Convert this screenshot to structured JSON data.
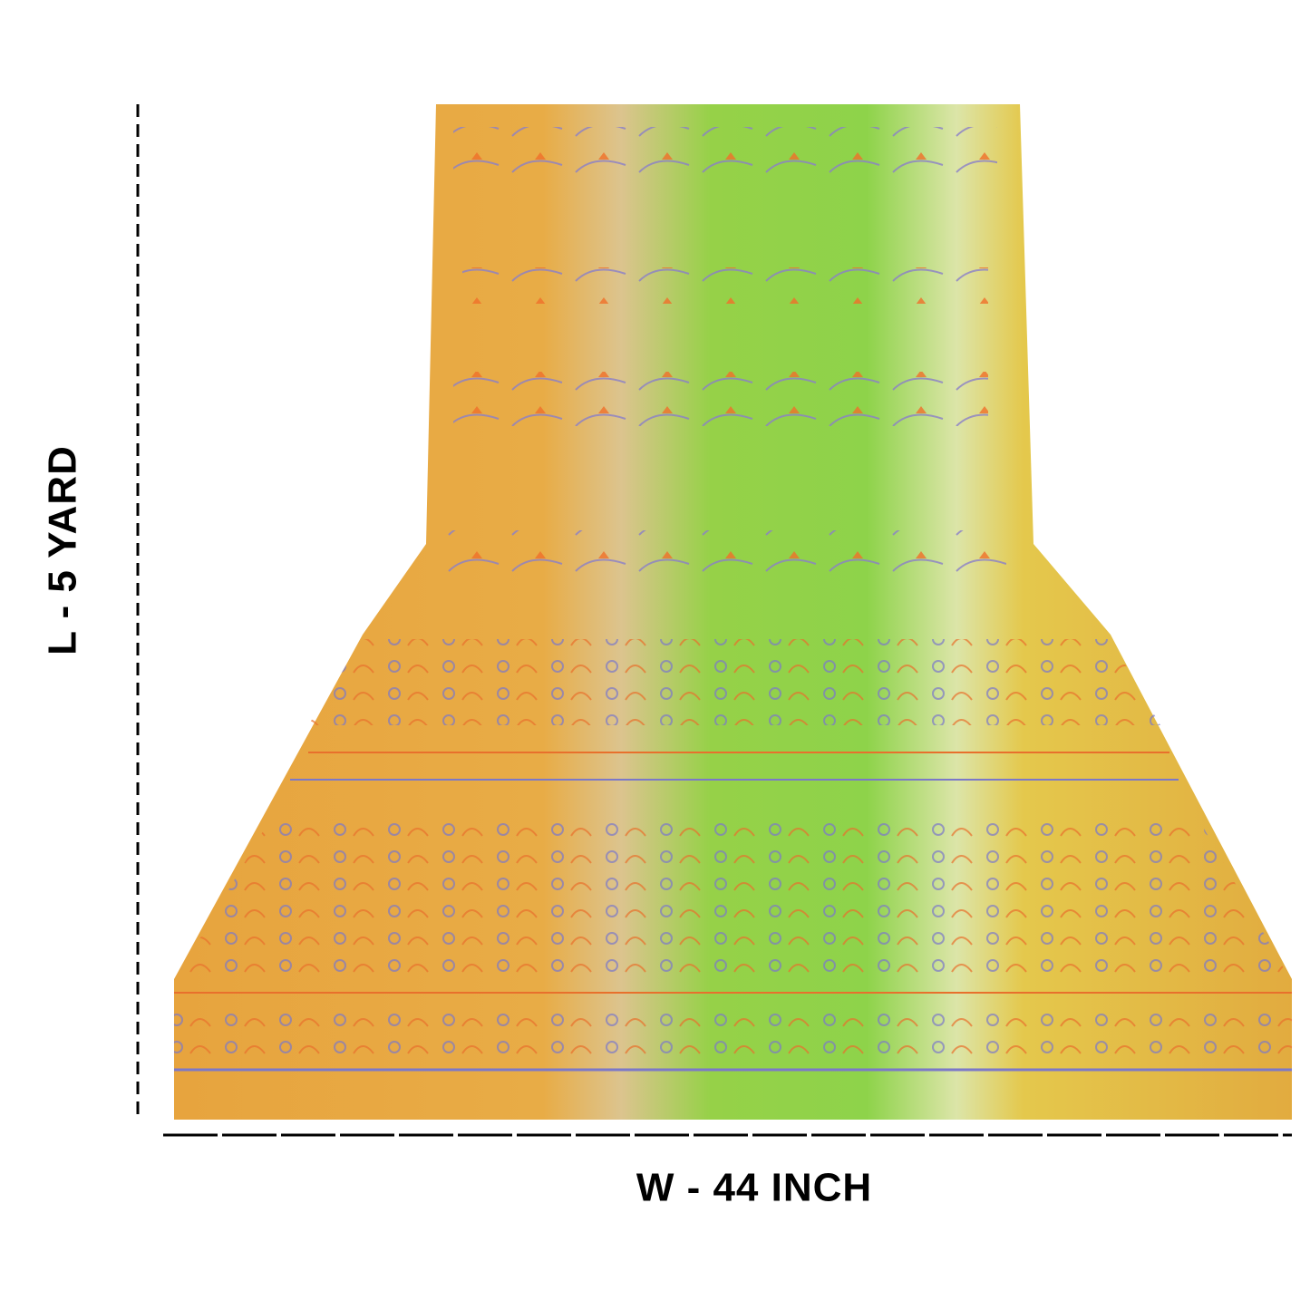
{
  "labels": {
    "length": "L - 5 YARD",
    "width": "W - 44 INCH"
  }
}
